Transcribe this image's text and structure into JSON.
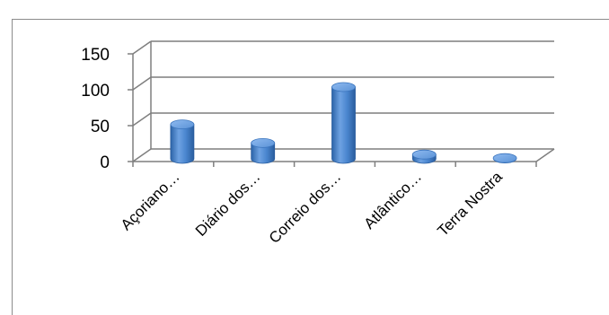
{
  "chart_data": {
    "type": "bar",
    "style": "3d-cylinder",
    "title": "",
    "xlabel": "",
    "ylabel": "",
    "categories": [
      "Açoriano…",
      "Diário dos…",
      "Correio dos…",
      "Atlântico…",
      "Terra Nostra"
    ],
    "values": [
      48,
      22,
      100,
      6,
      1
    ],
    "ylim": [
      0,
      150
    ],
    "yticks": [
      0,
      50,
      100,
      150
    ],
    "grid": true,
    "bar_color": "#4a86cf"
  }
}
